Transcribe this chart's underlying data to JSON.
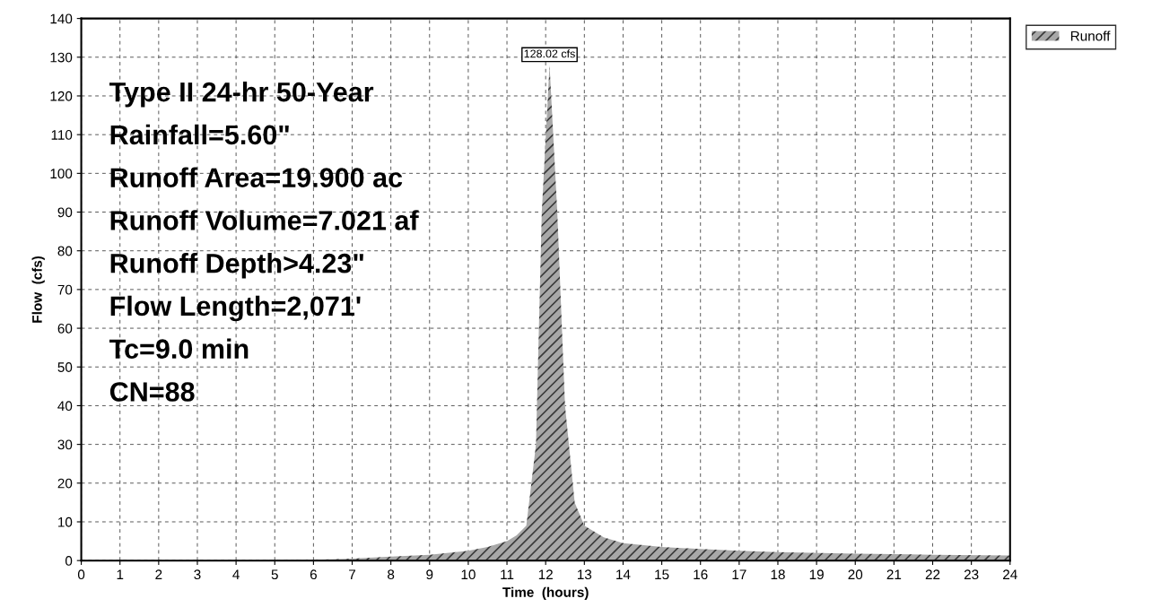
{
  "chart_data": {
    "type": "area",
    "xlabel": "Time  (hours)",
    "ylabel": "Flow  (cfs)",
    "xlim": [
      0,
      24
    ],
    "ylim": [
      0,
      140
    ],
    "xticks": [
      0,
      1,
      2,
      3,
      4,
      5,
      6,
      7,
      8,
      9,
      10,
      11,
      12,
      13,
      14,
      15,
      16,
      17,
      18,
      19,
      20,
      21,
      22,
      23,
      24
    ],
    "yticks": [
      0,
      10,
      20,
      30,
      40,
      50,
      60,
      70,
      80,
      90,
      100,
      110,
      120,
      130,
      140
    ],
    "grid": true,
    "legend": "top right",
    "series": [
      {
        "name": "Runoff",
        "color": "#a8a8a8",
        "x": [
          0,
          4,
          6,
          7,
          8,
          9,
          10,
          10.5,
          11,
          11.25,
          11.5,
          11.75,
          11.9,
          12.1,
          12.3,
          12.5,
          12.75,
          13,
          13.5,
          14,
          15,
          16,
          17,
          18,
          20,
          22,
          24
        ],
        "values": [
          0,
          0,
          0.2,
          0.5,
          1,
          1.5,
          2.5,
          3.5,
          5,
          6.5,
          9,
          30,
          90,
          128.02,
          90,
          40,
          15,
          9,
          6,
          4.5,
          3.5,
          3,
          2.5,
          2.2,
          1.8,
          1.5,
          1.3
        ]
      }
    ],
    "annotations": [
      {
        "text": "128.02 cfs",
        "x": 12.1,
        "y": 128.02
      },
      "Type II 24-hr 50-Year",
      "Rainfall=5.60\"",
      "Runoff Area=19.900 ac",
      "Runoff Volume=7.021 af",
      "Runoff Depth>4.23\"",
      "Flow Length=2,071'",
      "Tc=9.0 min",
      "CN=88"
    ]
  }
}
